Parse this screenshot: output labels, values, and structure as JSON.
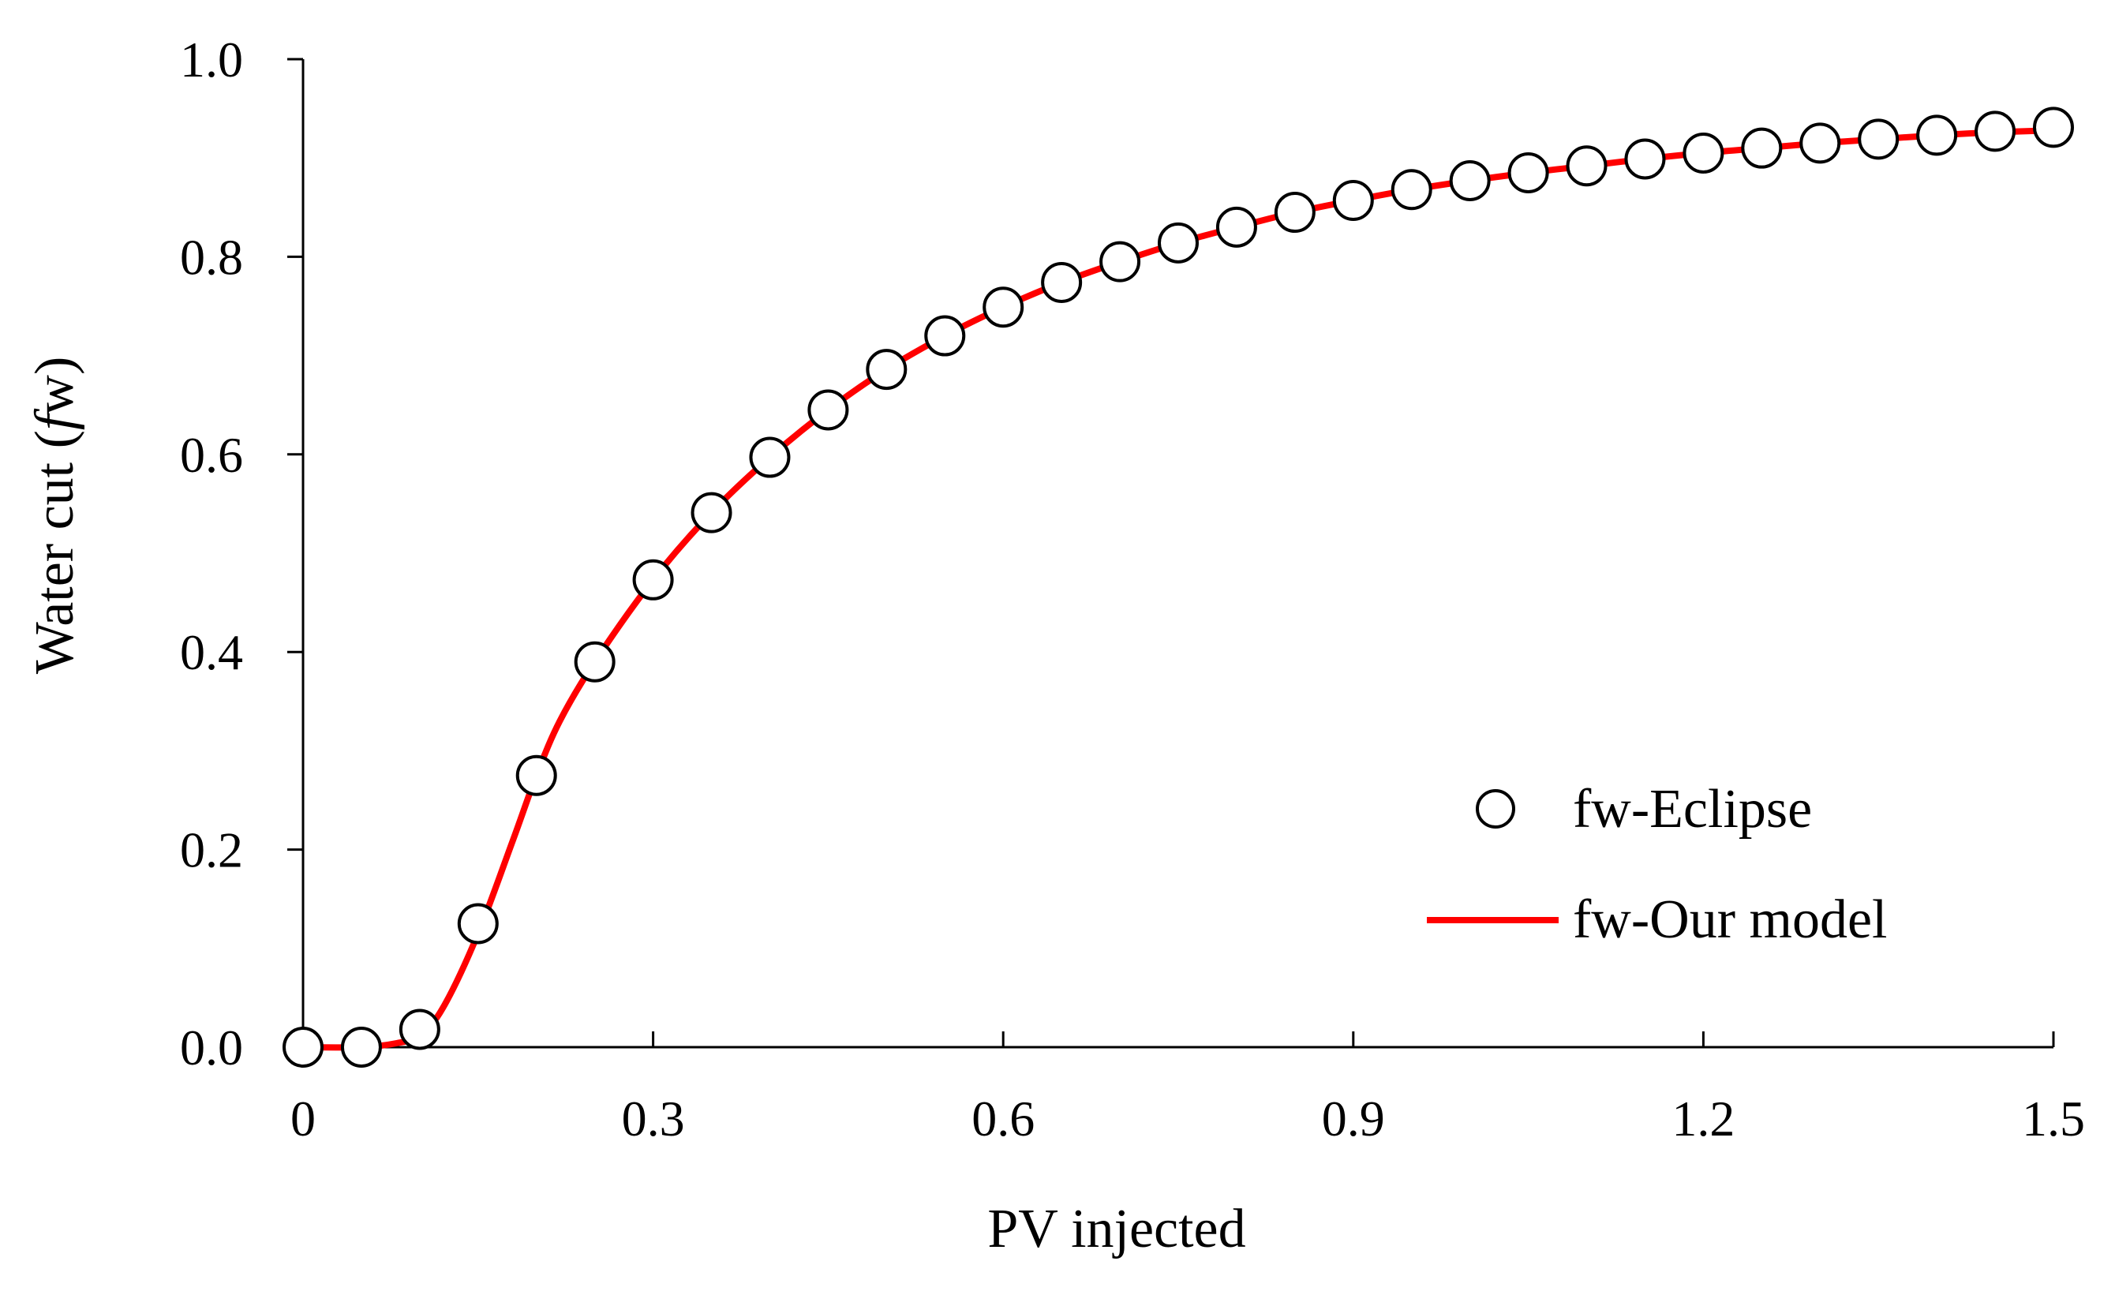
{
  "chart_data": {
    "type": "line",
    "title": "",
    "xlabel": "PV injected",
    "ylabel_prefix": "Water cut (",
    "ylabel_italic": "f",
    "ylabel_suffix": "w)",
    "xlim": [
      0,
      1.5
    ],
    "ylim": [
      0,
      1.0
    ],
    "x_ticks": [
      0,
      0.3,
      0.6,
      0.9,
      1.2,
      1.5
    ],
    "x_tick_labels": [
      "0",
      "0.3",
      "0.6",
      "0.9",
      "1.2",
      "1.5"
    ],
    "y_ticks": [
      0,
      0.2,
      0.4,
      0.6,
      0.8,
      1.0
    ],
    "y_tick_labels": [
      "0.0",
      "0.2",
      "0.4",
      "0.6",
      "0.8",
      "1.0"
    ],
    "grid": false,
    "legend_position": "lower-right",
    "series": [
      {
        "name": "fw-Eclipse",
        "style": "scatter",
        "marker": "open-circle",
        "color": "#000000",
        "x": [
          0,
          0.05,
          0.1,
          0.15,
          0.2,
          0.25,
          0.3,
          0.35,
          0.4,
          0.45,
          0.5,
          0.55,
          0.6,
          0.65,
          0.7,
          0.75,
          0.8,
          0.85,
          0.9,
          0.95,
          1.0,
          1.05,
          1.1,
          1.15,
          1.2,
          1.25,
          1.3,
          1.35,
          1.4,
          1.45,
          1.5
        ],
        "y": [
          0.0,
          0.0,
          0.018,
          0.125,
          0.275,
          0.39,
          0.473,
          0.541,
          0.597,
          0.645,
          0.686,
          0.72,
          0.749,
          0.774,
          0.795,
          0.814,
          0.83,
          0.845,
          0.857,
          0.868,
          0.877,
          0.885,
          0.892,
          0.899,
          0.905,
          0.91,
          0.915,
          0.919,
          0.923,
          0.927,
          0.931
        ]
      },
      {
        "name": "fw-Our model",
        "style": "line",
        "color": "#ff0000",
        "x": [
          0,
          0.05,
          0.08,
          0.1,
          0.12,
          0.15,
          0.18,
          0.2,
          0.22,
          0.25,
          0.3,
          0.35,
          0.4,
          0.45,
          0.5,
          0.55,
          0.6,
          0.65,
          0.7,
          0.75,
          0.8,
          0.85,
          0.9,
          0.95,
          1.0,
          1.05,
          1.1,
          1.15,
          1.2,
          1.25,
          1.3,
          1.35,
          1.4,
          1.45,
          1.5
        ],
        "y": [
          0.0,
          0.0,
          0.004,
          0.012,
          0.04,
          0.115,
          0.21,
          0.275,
          0.33,
          0.39,
          0.473,
          0.541,
          0.597,
          0.645,
          0.686,
          0.72,
          0.749,
          0.774,
          0.795,
          0.814,
          0.83,
          0.845,
          0.857,
          0.868,
          0.877,
          0.885,
          0.892,
          0.899,
          0.905,
          0.91,
          0.915,
          0.919,
          0.923,
          0.926,
          0.928
        ]
      }
    ]
  }
}
